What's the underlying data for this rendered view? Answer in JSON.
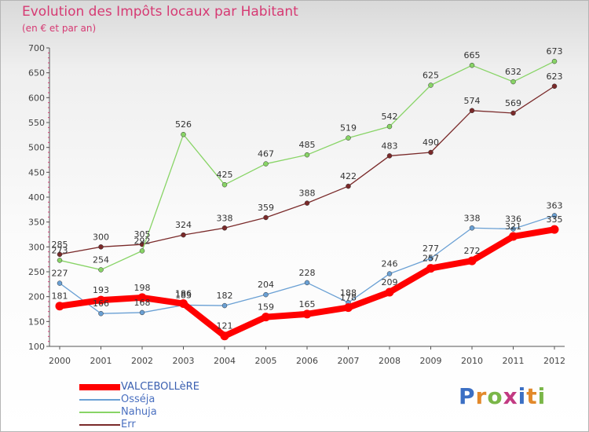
{
  "title": "Evolution des Impôts locaux par Habitant",
  "subtitle": "(en € et par an)",
  "logo": {
    "text": "Proxiti",
    "colors": [
      "#3b6fc4",
      "#e2892b",
      "#7ab648",
      "#c23a82",
      "#3b6fc4",
      "#e2892b",
      "#7ab648"
    ]
  },
  "chart_data": {
    "type": "line",
    "x": [
      "2000",
      "2001",
      "2002",
      "2003",
      "2004",
      "2005",
      "2006",
      "2007",
      "2008",
      "2009",
      "2010",
      "2011",
      "2012"
    ],
    "ylim": [
      100,
      700
    ],
    "yticks": [
      "100",
      "150",
      "200",
      "250",
      "300",
      "350",
      "400",
      "450",
      "500",
      "550",
      "600",
      "650",
      "700"
    ],
    "grid": false,
    "legend_position": "bottom-left",
    "series": [
      {
        "name": "VALCEBOLLèRE",
        "color": "#ff0000",
        "values": [
          181,
          193,
          198,
          186,
          121,
          159,
          165,
          178,
          209,
          257,
          272,
          321,
          335
        ],
        "labels": [
          "181",
          "193",
          "198",
          "186",
          "121",
          "159",
          "165",
          "178",
          "209",
          "257",
          "272",
          "321",
          "335"
        ]
      },
      {
        "name": "Osséja",
        "color": "#6aa0d4",
        "values": [
          227,
          166,
          168,
          183,
          182,
          204,
          228,
          188,
          246,
          277,
          338,
          336,
          363
        ],
        "labels": [
          "227",
          "166",
          "168",
          "183",
          "182",
          "204",
          "228",
          "188",
          "246",
          "277",
          "338",
          "336",
          "363"
        ]
      },
      {
        "name": "Nahuja",
        "color": "#88d466",
        "values": [
          273,
          254,
          292,
          526,
          425,
          467,
          485,
          519,
          542,
          625,
          665,
          632,
          673
        ],
        "labels": [
          "273",
          "254",
          "292",
          "526",
          "425",
          "467",
          "485",
          "519",
          "542",
          "625",
          "665",
          "632",
          "673"
        ]
      },
      {
        "name": "Err",
        "color": "#7a2a2a",
        "values": [
          285,
          300,
          305,
          324,
          338,
          359,
          388,
          422,
          483,
          490,
          574,
          569,
          623
        ],
        "labels": [
          "285",
          "300",
          "305",
          "324",
          "338",
          "359",
          "388",
          "422",
          "483",
          "490",
          "574",
          "569",
          "623"
        ]
      }
    ]
  }
}
